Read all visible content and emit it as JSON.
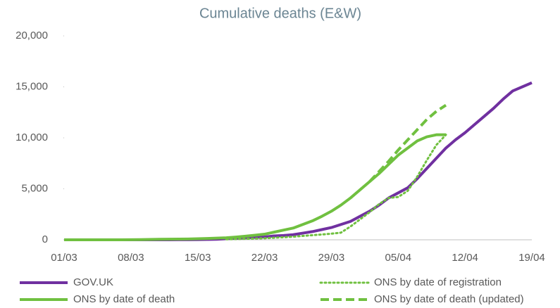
{
  "chart_data": {
    "type": "line",
    "title": "Cumulative deaths (E&W)",
    "categories": [
      "01/03",
      null,
      null,
      null,
      null,
      null,
      null,
      "08/03",
      null,
      null,
      null,
      null,
      null,
      null,
      "15/03",
      null,
      null,
      null,
      null,
      null,
      null,
      "22/03",
      null,
      null,
      null,
      null,
      null,
      null,
      "29/03",
      null,
      null,
      null,
      null,
      null,
      null,
      "05/04",
      null,
      null,
      null,
      null,
      null,
      null,
      "12/04",
      null,
      null,
      null,
      null,
      null,
      null,
      "19/04"
    ],
    "series": [
      {
        "name": "GOV.UK",
        "color": "#7030a0",
        "style": "solid",
        "values": [
          0,
          0,
          0,
          0,
          0,
          0,
          0,
          0,
          0,
          0,
          1,
          2,
          5,
          10,
          20,
          35,
          55,
          100,
          140,
          180,
          230,
          280,
          380,
          420,
          500,
          650,
          800,
          1000,
          1200,
          1500,
          1800,
          2300,
          2800,
          3400,
          4100,
          4600,
          5100,
          6000,
          7000,
          8000,
          9000,
          9800,
          10500,
          11300,
          12100,
          12900,
          13800,
          14600,
          15000,
          15400
        ]
      },
      {
        "name": "ONS by date of registration",
        "color": "#70c040",
        "style": "dotted",
        "values": [
          null,
          null,
          null,
          null,
          null,
          null,
          null,
          null,
          null,
          null,
          null,
          null,
          null,
          null,
          null,
          null,
          null,
          50,
          70,
          100,
          120,
          150,
          200,
          250,
          300,
          380,
          450,
          520,
          600,
          700,
          1300,
          2000,
          2700,
          3500,
          4100,
          4200,
          4800,
          6200,
          7800,
          9300,
          10300,
          null,
          null,
          null,
          null,
          null,
          null,
          null,
          null,
          null
        ]
      },
      {
        "name": "ONS by date of death",
        "color": "#70c040",
        "style": "solid",
        "values": [
          0,
          0,
          0,
          0,
          0,
          0,
          0,
          10,
          20,
          30,
          50,
          60,
          70,
          80,
          100,
          130,
          160,
          200,
          270,
          350,
          450,
          550,
          750,
          950,
          1150,
          1500,
          1850,
          2300,
          2800,
          3400,
          4100,
          4900,
          5700,
          6500,
          7400,
          8300,
          9000,
          9700,
          10100,
          10300,
          10300,
          null,
          null,
          null,
          null,
          null,
          null,
          null,
          null,
          null
        ]
      },
      {
        "name": "ONS by date of death (updated)",
        "color": "#70c040",
        "style": "dashed",
        "values": [
          null,
          null,
          null,
          null,
          null,
          null,
          null,
          null,
          null,
          null,
          null,
          null,
          null,
          null,
          null,
          null,
          null,
          null,
          null,
          null,
          null,
          null,
          null,
          null,
          null,
          null,
          null,
          null,
          null,
          null,
          null,
          null,
          5700,
          6700,
          7700,
          8800,
          9800,
          10800,
          11800,
          12600,
          13200,
          null,
          null,
          null,
          null,
          null,
          null,
          null,
          null,
          null
        ]
      }
    ],
    "ylim": [
      0,
      20000
    ],
    "yticks": [
      0,
      {
        "value": 5000,
        "label": "5,000"
      },
      {
        "value": 10000,
        "label": "10,000"
      },
      {
        "value": 15000,
        "label": "15,000"
      },
      {
        "value": 20000,
        "label": "20,000"
      }
    ]
  }
}
